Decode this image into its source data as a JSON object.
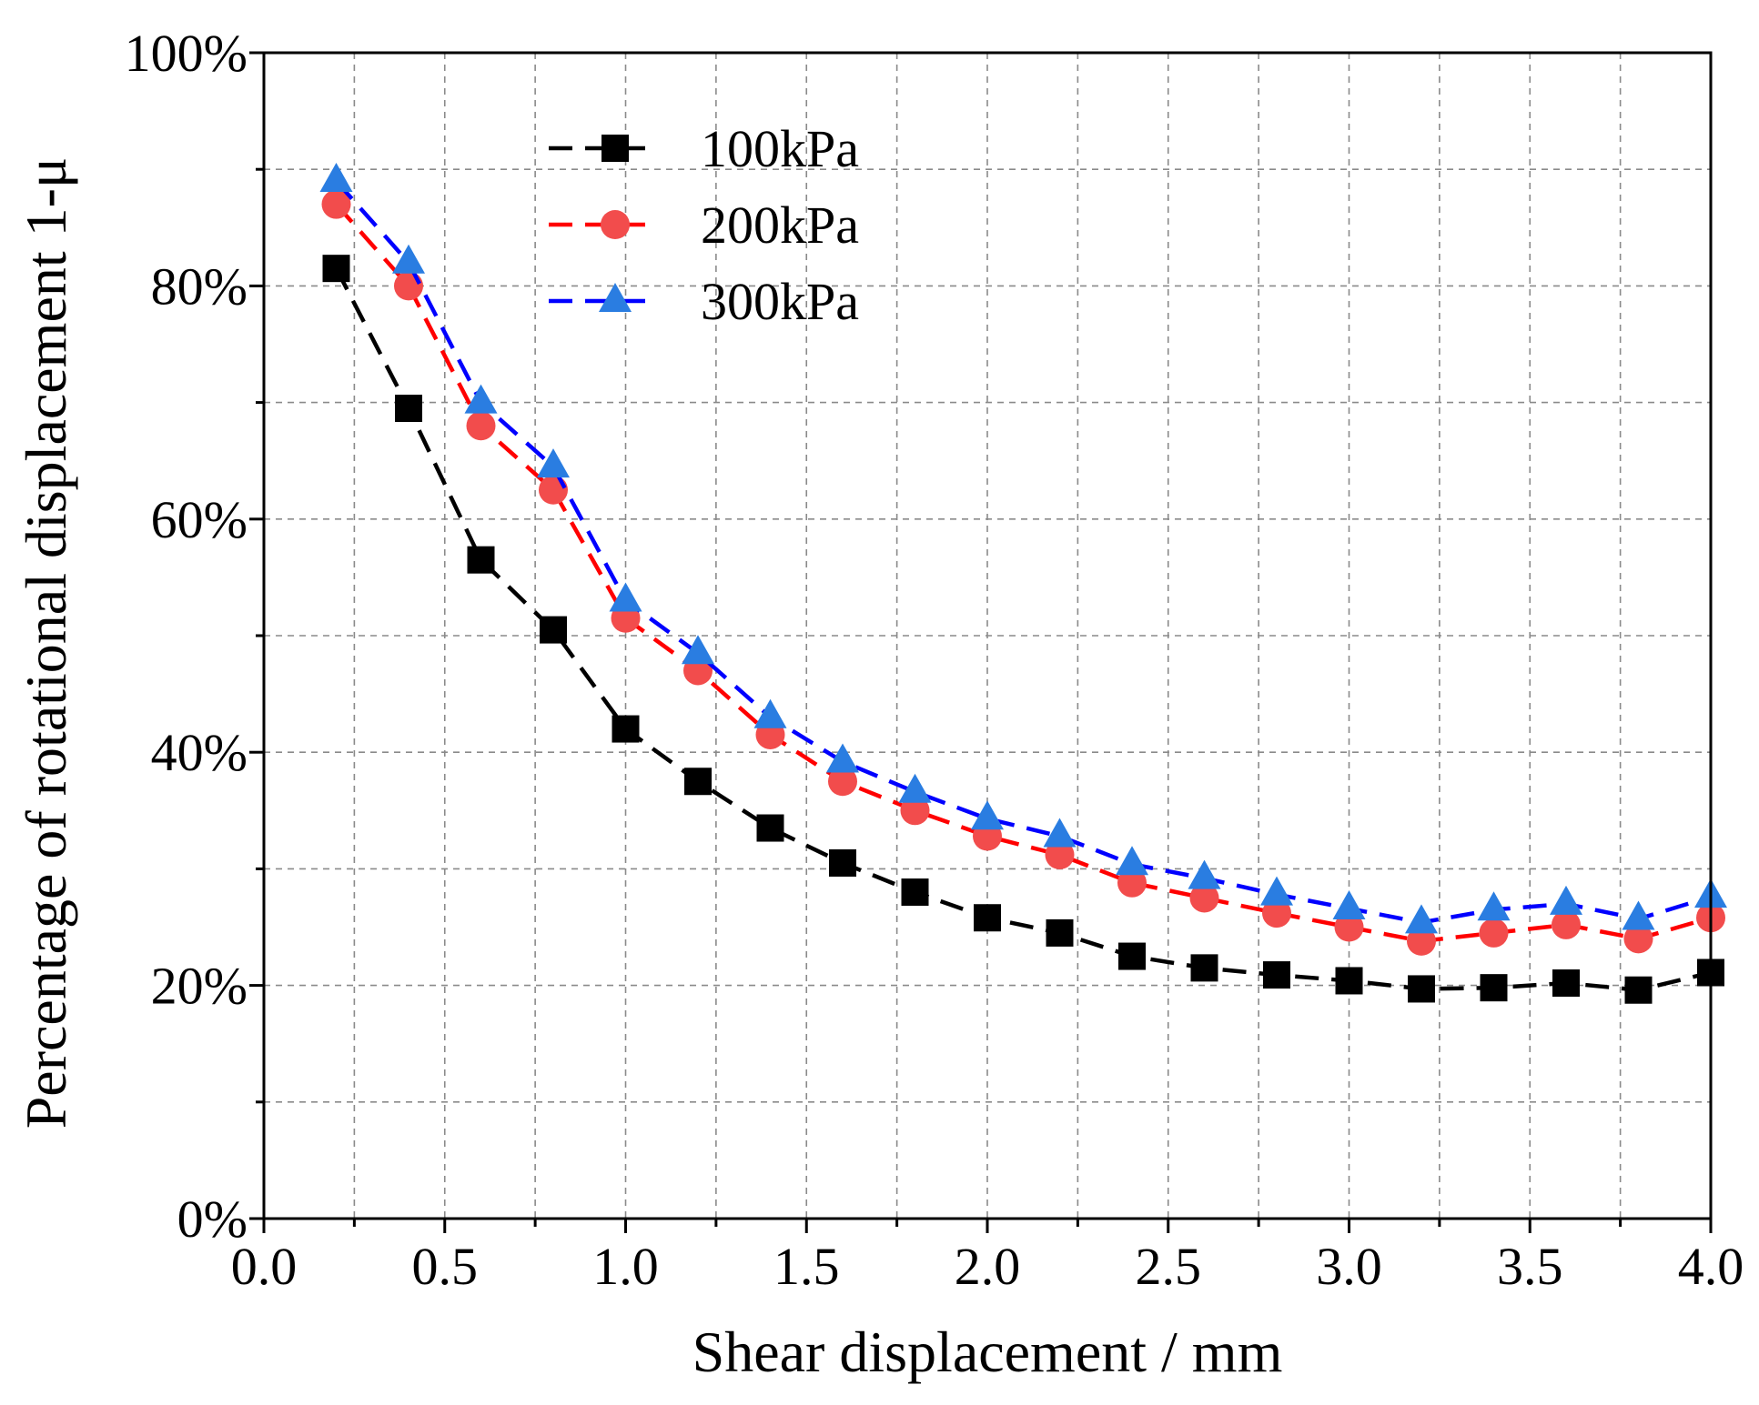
{
  "chart_data": {
    "type": "line",
    "xlabel": "Shear displacement / mm",
    "ylabel": "Percentage of rotational displacement 1-μ",
    "xlim": [
      0.0,
      4.0
    ],
    "ylim": [
      0,
      100
    ],
    "x_ticks": [
      0.0,
      0.5,
      1.0,
      1.5,
      2.0,
      2.5,
      3.0,
      3.5,
      4.0
    ],
    "x_tick_labels": [
      "0.0",
      "0.5",
      "1.0",
      "1.5",
      "2.0",
      "2.5",
      "3.0",
      "3.5",
      "4.0"
    ],
    "y_ticks": [
      0,
      20,
      40,
      60,
      80,
      100
    ],
    "y_tick_labels": [
      "0%",
      "20%",
      "40%",
      "60%",
      "80%",
      "100%"
    ],
    "grid": true,
    "legend_position": "top-left",
    "x": [
      0.2,
      0.4,
      0.6,
      0.8,
      1.0,
      1.2,
      1.4,
      1.6,
      1.8,
      2.0,
      2.2,
      2.4,
      2.6,
      2.8,
      3.0,
      3.2,
      3.4,
      3.6,
      3.8,
      4.0
    ],
    "series": [
      {
        "name": "100kPa",
        "color": "#000000",
        "marker": "square",
        "values": [
          81.5,
          69.5,
          56.5,
          50.5,
          42.0,
          37.5,
          33.5,
          30.5,
          28.0,
          25.8,
          24.5,
          22.5,
          21.5,
          20.9,
          20.4,
          19.7,
          19.8,
          20.2,
          19.6,
          21.1
        ]
      },
      {
        "name": "200kPa",
        "color": "#ff0000",
        "marker": "circle",
        "values": [
          87.0,
          80.0,
          68.0,
          62.5,
          51.5,
          47.0,
          41.5,
          37.5,
          35.0,
          32.8,
          31.2,
          28.8,
          27.5,
          26.2,
          25.0,
          23.8,
          24.5,
          25.2,
          24.0,
          25.8
        ]
      },
      {
        "name": "300kPa",
        "color": "#0000ff",
        "marker_color": "#2a7de1",
        "marker": "triangle",
        "values": [
          89.0,
          82.0,
          70.0,
          64.5,
          53.0,
          48.5,
          43.0,
          39.2,
          36.6,
          34.3,
          32.8,
          30.4,
          29.2,
          27.8,
          26.6,
          25.4,
          26.5,
          27.0,
          25.7,
          27.6
        ]
      }
    ]
  }
}
